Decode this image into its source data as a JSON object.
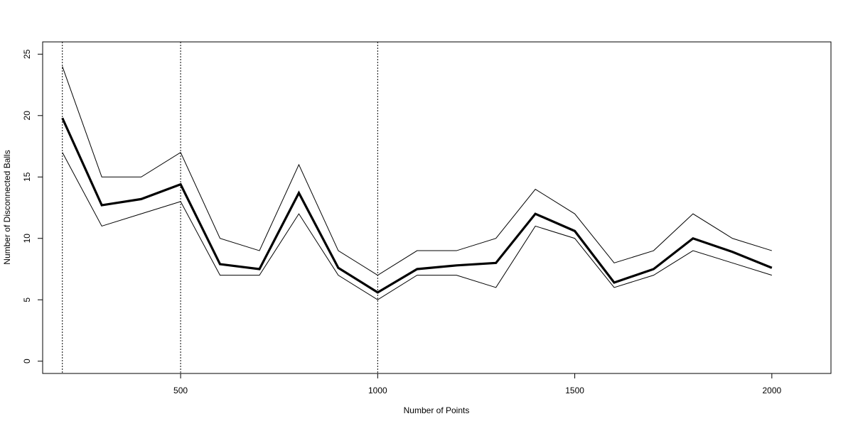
{
  "chart_data": {
    "type": "line",
    "title": "",
    "xlabel": "Number of Points",
    "ylabel": "Number of Disconnected Balls",
    "xlim": [
      150,
      2150
    ],
    "ylim": [
      -1,
      26
    ],
    "x_ticks": [
      500,
      1000,
      1500,
      2000
    ],
    "y_ticks": [
      0,
      5,
      10,
      15,
      20,
      25
    ],
    "grid": false,
    "legend": "none",
    "vertical_reference_lines": [
      200,
      500,
      1000
    ],
    "x": [
      200,
      300,
      400,
      500,
      600,
      700,
      800,
      900,
      1000,
      1100,
      1200,
      1300,
      1400,
      1500,
      1600,
      1700,
      1800,
      1900,
      2000
    ],
    "series": [
      {
        "role": "upper",
        "values": [
          24,
          15,
          15,
          17,
          10,
          9,
          16,
          9,
          7,
          9,
          9,
          10,
          14,
          12,
          8,
          9,
          12,
          10,
          9
        ]
      },
      {
        "role": "mean",
        "values": [
          19.8,
          12.7,
          13.2,
          14.4,
          7.9,
          7.5,
          13.7,
          7.6,
          5.6,
          7.5,
          7.8,
          8.0,
          12.0,
          10.6,
          6.4,
          7.5,
          10.0,
          8.9,
          7.6
        ]
      },
      {
        "role": "lower",
        "values": [
          17,
          11,
          12,
          13,
          7,
          7,
          12,
          7,
          5,
          7,
          7,
          6,
          11,
          10,
          6,
          7,
          9,
          8,
          7
        ]
      }
    ],
    "colors": {
      "line": "#000000",
      "background": "#ffffff"
    }
  }
}
